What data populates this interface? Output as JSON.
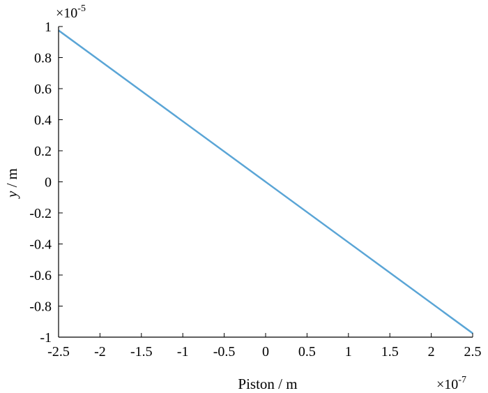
{
  "chart_data": {
    "type": "line",
    "xlabel": "Piston / m",
    "ylabel_italic": "y",
    "ylabel_unit": " / m",
    "x_multiplier_base": "×10",
    "x_multiplier_exp": "-7",
    "y_multiplier_base": "×10",
    "y_multiplier_exp": "-5",
    "xlim": [
      -2.5,
      2.5
    ],
    "ylim": [
      -1,
      1
    ],
    "x_ticks": [
      -2.5,
      -2,
      -1.5,
      -1,
      -0.5,
      0,
      0.5,
      1,
      1.5,
      2,
      2.5
    ],
    "y_ticks": [
      -1,
      -0.8,
      -0.6,
      -0.4,
      -0.2,
      0,
      0.2,
      0.4,
      0.6,
      0.8,
      1
    ],
    "grid": false,
    "series": [
      {
        "color": "#5aa5d6",
        "x": [
          -2.5,
          2.5
        ],
        "y": [
          0.975,
          -0.975
        ]
      }
    ]
  }
}
